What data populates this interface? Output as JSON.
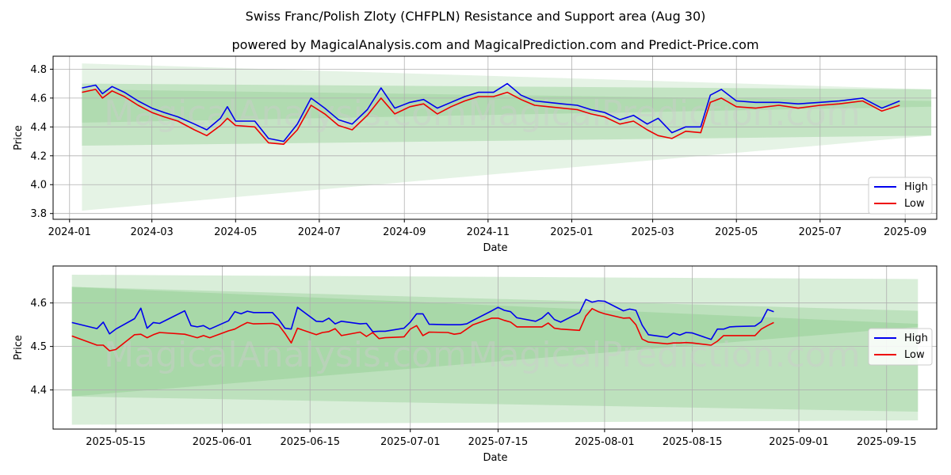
{
  "title_line1": "Swiss Franc/Polish Zloty (CHFPLN) Resistance and Support area (Aug 30)",
  "title_line2": "powered by MagicalAnalysis.com and MagicalPrediction.com and Predict-Price.com",
  "watermarks": [
    "MagicalAnalysis.com",
    "MagicalPrediction.com"
  ],
  "colors": {
    "high": "#0000ee",
    "low": "#ee0000",
    "band": "#2ca02c"
  },
  "chart_data": [
    {
      "type": "line",
      "name": "top-panel",
      "xlabel": "Date",
      "ylabel": "Price",
      "ylim": [
        3.76,
        4.89
      ],
      "xlim": [
        "2023-12-20",
        "2025-09-24"
      ],
      "xticks": [
        "2024-01",
        "2024-03",
        "2024-05",
        "2024-07",
        "2024-09",
        "2024-11",
        "2025-01",
        "2025-03",
        "2025-05",
        "2025-07",
        "2025-09"
      ],
      "xtick_dates": [
        "2024-01-01",
        "2024-03-01",
        "2024-05-01",
        "2024-07-01",
        "2024-09-01",
        "2024-11-01",
        "2025-01-01",
        "2025-03-01",
        "2025-05-01",
        "2025-07-01",
        "2025-09-01"
      ],
      "yticks": [
        "3.8",
        "4.0",
        "4.2",
        "4.4",
        "4.6",
        "4.8"
      ],
      "ytick_values": [
        3.8,
        4.0,
        4.2,
        4.4,
        4.6,
        4.8
      ],
      "legend": {
        "position": "lower-right",
        "entries": [
          "High",
          "Low"
        ]
      },
      "bands": [
        {
          "start": "2024-01-10",
          "end": "2025-09-20",
          "upper": [
            4.84,
            4.66
          ],
          "lower": [
            3.82,
            4.34
          ],
          "opacity": 0.12
        },
        {
          "start": "2024-01-10",
          "end": "2025-09-20",
          "upper": [
            4.7,
            4.66
          ],
          "lower": [
            4.27,
            4.34
          ],
          "opacity": 0.18
        },
        {
          "start": "2024-01-10",
          "end": "2025-09-20",
          "upper": [
            4.66,
            4.58
          ],
          "lower": [
            4.43,
            4.54
          ],
          "opacity": 0.12
        }
      ],
      "series": [
        {
          "name": "High",
          "x": [
            "2024-01-10",
            "2024-01-20",
            "2024-01-25",
            "2024-02-01",
            "2024-02-10",
            "2024-02-20",
            "2024-03-01",
            "2024-03-10",
            "2024-03-20",
            "2024-04-01",
            "2024-04-10",
            "2024-04-20",
            "2024-04-25",
            "2024-05-01",
            "2024-05-15",
            "2024-05-25",
            "2024-06-05",
            "2024-06-15",
            "2024-06-25",
            "2024-07-05",
            "2024-07-15",
            "2024-07-25",
            "2024-08-05",
            "2024-08-15",
            "2024-08-25",
            "2024-09-05",
            "2024-09-15",
            "2024-09-25",
            "2024-10-05",
            "2024-10-15",
            "2024-10-25",
            "2024-11-05",
            "2024-11-15",
            "2024-11-25",
            "2024-12-05",
            "2024-12-15",
            "2024-12-25",
            "2025-01-05",
            "2025-01-15",
            "2025-01-25",
            "2025-02-05",
            "2025-02-15",
            "2025-02-25",
            "2025-03-05",
            "2025-03-15",
            "2025-03-25",
            "2025-04-05",
            "2025-04-12",
            "2025-04-20",
            "2025-05-01",
            "2025-05-15",
            "2025-06-01",
            "2025-06-15",
            "2025-07-01",
            "2025-07-15",
            "2025-08-01",
            "2025-08-15",
            "2025-08-28"
          ],
          "values": [
            4.67,
            4.69,
            4.63,
            4.68,
            4.64,
            4.58,
            4.53,
            4.5,
            4.47,
            4.42,
            4.38,
            4.46,
            4.54,
            4.44,
            4.44,
            4.32,
            4.3,
            4.42,
            4.6,
            4.53,
            4.45,
            4.42,
            4.52,
            4.67,
            4.53,
            4.57,
            4.59,
            4.53,
            4.57,
            4.61,
            4.64,
            4.64,
            4.7,
            4.62,
            4.58,
            4.57,
            4.56,
            4.55,
            4.52,
            4.5,
            4.45,
            4.48,
            4.42,
            4.46,
            4.36,
            4.4,
            4.4,
            4.62,
            4.66,
            4.58,
            4.57,
            4.57,
            4.56,
            4.57,
            4.58,
            4.6,
            4.53,
            4.58
          ]
        },
        {
          "name": "Low",
          "x": [
            "2024-01-10",
            "2024-01-20",
            "2024-01-25",
            "2024-02-01",
            "2024-02-10",
            "2024-02-20",
            "2024-03-01",
            "2024-03-10",
            "2024-03-20",
            "2024-04-01",
            "2024-04-10",
            "2024-04-20",
            "2024-04-25",
            "2024-05-01",
            "2024-05-15",
            "2024-05-25",
            "2024-06-05",
            "2024-06-15",
            "2024-06-25",
            "2024-07-05",
            "2024-07-15",
            "2024-07-25",
            "2024-08-05",
            "2024-08-15",
            "2024-08-25",
            "2024-09-05",
            "2024-09-15",
            "2024-09-25",
            "2024-10-05",
            "2024-10-15",
            "2024-10-25",
            "2024-11-05",
            "2024-11-15",
            "2024-11-25",
            "2024-12-05",
            "2024-12-15",
            "2024-12-25",
            "2025-01-05",
            "2025-01-15",
            "2025-01-25",
            "2025-02-05",
            "2025-02-15",
            "2025-02-25",
            "2025-03-05",
            "2025-03-15",
            "2025-03-25",
            "2025-04-05",
            "2025-04-12",
            "2025-04-20",
            "2025-05-01",
            "2025-05-15",
            "2025-06-01",
            "2025-06-15",
            "2025-07-01",
            "2025-07-15",
            "2025-08-01",
            "2025-08-15",
            "2025-08-28"
          ],
          "values": [
            4.64,
            4.66,
            4.6,
            4.65,
            4.61,
            4.55,
            4.5,
            4.47,
            4.44,
            4.38,
            4.34,
            4.41,
            4.46,
            4.41,
            4.4,
            4.29,
            4.28,
            4.38,
            4.55,
            4.49,
            4.41,
            4.38,
            4.48,
            4.6,
            4.49,
            4.54,
            4.56,
            4.49,
            4.54,
            4.58,
            4.61,
            4.61,
            4.64,
            4.59,
            4.55,
            4.54,
            4.53,
            4.52,
            4.49,
            4.47,
            4.42,
            4.44,
            4.38,
            4.34,
            4.32,
            4.37,
            4.36,
            4.57,
            4.6,
            4.54,
            4.53,
            4.55,
            4.53,
            4.55,
            4.56,
            4.58,
            4.51,
            4.55
          ]
        }
      ]
    },
    {
      "type": "line",
      "name": "bottom-panel",
      "xlabel": "Date",
      "ylabel": "Price",
      "ylim": [
        4.31,
        4.685
      ],
      "xlim": [
        "2025-05-05",
        "2025-09-23"
      ],
      "xticks": [
        "2025-05-15",
        "2025-06-01",
        "2025-06-15",
        "2025-07-01",
        "2025-07-15",
        "2025-08-01",
        "2025-08-15",
        "2025-09-01",
        "2025-09-15"
      ],
      "xtick_dates": [
        "2025-05-15",
        "2025-06-01",
        "2025-06-15",
        "2025-07-01",
        "2025-07-15",
        "2025-08-01",
        "2025-08-15",
        "2025-09-01",
        "2025-09-15"
      ],
      "yticks": [
        "4.4",
        "4.5",
        "4.6"
      ],
      "ytick_values": [
        4.4,
        4.5,
        4.6
      ],
      "legend": {
        "position": "center-right",
        "entries": [
          "High",
          "Low"
        ]
      },
      "bands": [
        {
          "start": "2025-05-08",
          "end": "2025-09-20",
          "upper": [
            4.665,
            4.655
          ],
          "lower": [
            4.32,
            4.33
          ],
          "opacity": 0.18
        },
        {
          "start": "2025-05-08",
          "end": "2025-09-20",
          "upper": [
            4.637,
            4.582
          ],
          "lower": [
            4.385,
            4.35
          ],
          "opacity": 0.16
        },
        {
          "start": "2025-05-08",
          "end": "2025-09-20",
          "upper": [
            4.637,
            4.552
          ],
          "lower": [
            4.385,
            4.545
          ],
          "opacity": 0.14
        }
      ],
      "series": [
        {
          "name": "High",
          "x": [
            "2025-05-08",
            "2025-05-12",
            "2025-05-13",
            "2025-05-14",
            "2025-05-15",
            "2025-05-18",
            "2025-05-19",
            "2025-05-20",
            "2025-05-21",
            "2025-05-22",
            "2025-05-26",
            "2025-05-27",
            "2025-05-28",
            "2025-05-29",
            "2025-05-30",
            "2025-06-02",
            "2025-06-03",
            "2025-06-04",
            "2025-06-05",
            "2025-06-06",
            "2025-06-09",
            "2025-06-10",
            "2025-06-11",
            "2025-06-12",
            "2025-06-13",
            "2025-06-16",
            "2025-06-17",
            "2025-06-18",
            "2025-06-19",
            "2025-06-20",
            "2025-06-23",
            "2025-06-24",
            "2025-06-25",
            "2025-06-26",
            "2025-06-27",
            "2025-06-30",
            "2025-07-01",
            "2025-07-02",
            "2025-07-03",
            "2025-07-04",
            "2025-07-07",
            "2025-07-08",
            "2025-07-09",
            "2025-07-10",
            "2025-07-11",
            "2025-07-14",
            "2025-07-15",
            "2025-07-16",
            "2025-07-17",
            "2025-07-18",
            "2025-07-21",
            "2025-07-22",
            "2025-07-23",
            "2025-07-24",
            "2025-07-25",
            "2025-07-28",
            "2025-07-29",
            "2025-07-30",
            "2025-07-31",
            "2025-08-01",
            "2025-08-04",
            "2025-08-05",
            "2025-08-06",
            "2025-08-07",
            "2025-08-08",
            "2025-08-11",
            "2025-08-12",
            "2025-08-13",
            "2025-08-14",
            "2025-08-15",
            "2025-08-18",
            "2025-08-19",
            "2025-08-20",
            "2025-08-21",
            "2025-08-22",
            "2025-08-25",
            "2025-08-26",
            "2025-08-27",
            "2025-08-28"
          ],
          "values": [
            4.555,
            4.541,
            4.556,
            4.529,
            4.54,
            4.564,
            4.588,
            4.542,
            4.555,
            4.553,
            4.582,
            4.548,
            4.545,
            4.548,
            4.54,
            4.559,
            4.58,
            4.575,
            4.581,
            4.578,
            4.578,
            4.562,
            4.542,
            4.54,
            4.59,
            4.558,
            4.557,
            4.565,
            4.552,
            4.558,
            4.552,
            4.553,
            4.534,
            4.535,
            4.535,
            4.542,
            4.556,
            4.575,
            4.575,
            4.551,
            4.55,
            4.55,
            4.55,
            4.552,
            4.56,
            4.582,
            4.59,
            4.583,
            4.58,
            4.566,
            4.558,
            4.565,
            4.578,
            4.562,
            4.556,
            4.578,
            4.608,
            4.602,
            4.605,
            4.604,
            4.582,
            4.586,
            4.583,
            4.549,
            4.527,
            4.521,
            4.531,
            4.526,
            4.532,
            4.531,
            4.516,
            4.54,
            4.54,
            4.545,
            4.546,
            4.547,
            4.557,
            4.585,
            4.58
          ]
        },
        {
          "name": "Low",
          "x": [
            "2025-05-08",
            "2025-05-12",
            "2025-05-13",
            "2025-05-14",
            "2025-05-15",
            "2025-05-18",
            "2025-05-19",
            "2025-05-20",
            "2025-05-21",
            "2025-05-22",
            "2025-05-26",
            "2025-05-27",
            "2025-05-28",
            "2025-05-29",
            "2025-05-30",
            "2025-06-02",
            "2025-06-03",
            "2025-06-04",
            "2025-06-05",
            "2025-06-06",
            "2025-06-09",
            "2025-06-10",
            "2025-06-11",
            "2025-06-12",
            "2025-06-13",
            "2025-06-16",
            "2025-06-17",
            "2025-06-18",
            "2025-06-19",
            "2025-06-20",
            "2025-06-23",
            "2025-06-24",
            "2025-06-25",
            "2025-06-26",
            "2025-06-27",
            "2025-06-30",
            "2025-07-01",
            "2025-07-02",
            "2025-07-03",
            "2025-07-04",
            "2025-07-07",
            "2025-07-08",
            "2025-07-09",
            "2025-07-10",
            "2025-07-11",
            "2025-07-14",
            "2025-07-15",
            "2025-07-16",
            "2025-07-17",
            "2025-07-18",
            "2025-07-21",
            "2025-07-22",
            "2025-07-23",
            "2025-07-24",
            "2025-07-25",
            "2025-07-28",
            "2025-07-29",
            "2025-07-30",
            "2025-07-31",
            "2025-08-01",
            "2025-08-04",
            "2025-08-05",
            "2025-08-06",
            "2025-08-07",
            "2025-08-08",
            "2025-08-11",
            "2025-08-12",
            "2025-08-13",
            "2025-08-14",
            "2025-08-15",
            "2025-08-18",
            "2025-08-19",
            "2025-08-20",
            "2025-08-21",
            "2025-08-22",
            "2025-08-25",
            "2025-08-26",
            "2025-08-27",
            "2025-08-28"
          ],
          "values": [
            4.524,
            4.503,
            4.503,
            4.49,
            4.493,
            4.527,
            4.528,
            4.52,
            4.527,
            4.532,
            4.528,
            4.524,
            4.52,
            4.525,
            4.52,
            4.536,
            4.54,
            4.548,
            4.555,
            4.552,
            4.553,
            4.549,
            4.53,
            4.508,
            4.542,
            4.527,
            4.532,
            4.534,
            4.541,
            4.525,
            4.533,
            4.523,
            4.532,
            4.518,
            4.52,
            4.522,
            4.54,
            4.548,
            4.525,
            4.533,
            4.532,
            4.528,
            4.53,
            4.54,
            4.55,
            4.565,
            4.565,
            4.56,
            4.556,
            4.545,
            4.545,
            4.545,
            4.554,
            4.542,
            4.54,
            4.537,
            4.57,
            4.587,
            4.58,
            4.575,
            4.565,
            4.566,
            4.55,
            4.517,
            4.51,
            4.506,
            4.508,
            4.508,
            4.509,
            4.508,
            4.503,
            4.512,
            4.525,
            4.525,
            4.525,
            4.525,
            4.54,
            4.548,
            4.555
          ]
        }
      ]
    }
  ]
}
